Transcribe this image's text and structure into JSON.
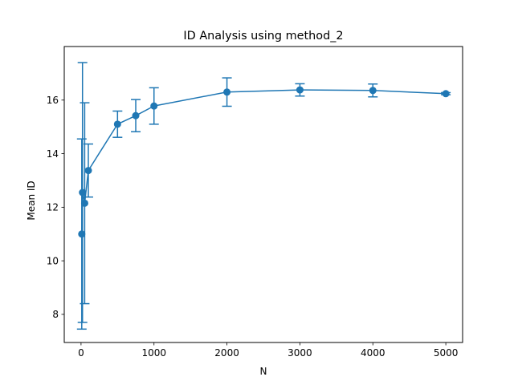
{
  "chart_data": {
    "type": "line",
    "title": "ID Analysis using method_2",
    "xlabel": "N",
    "ylabel": "Mean ID",
    "xlim": [
      -230,
      5230
    ],
    "ylim": [
      6.95,
      18.0
    ],
    "xticks": [
      0,
      1000,
      2000,
      3000,
      4000,
      5000
    ],
    "yticks": [
      8,
      10,
      12,
      14,
      16
    ],
    "grid": false,
    "legend": "none",
    "colors": {
      "series": "#1f77b4"
    },
    "series": [
      {
        "x": [
          10,
          20,
          50,
          100,
          500,
          750,
          1000,
          2000,
          3000,
          4000,
          5000
        ],
        "y": [
          11.0,
          12.55,
          12.15,
          13.37,
          15.1,
          15.42,
          15.78,
          16.3,
          16.38,
          16.36,
          16.24
        ],
        "err": [
          3.55,
          4.85,
          3.75,
          0.99,
          0.49,
          0.6,
          0.68,
          0.53,
          0.23,
          0.24,
          0.04
        ]
      }
    ]
  }
}
